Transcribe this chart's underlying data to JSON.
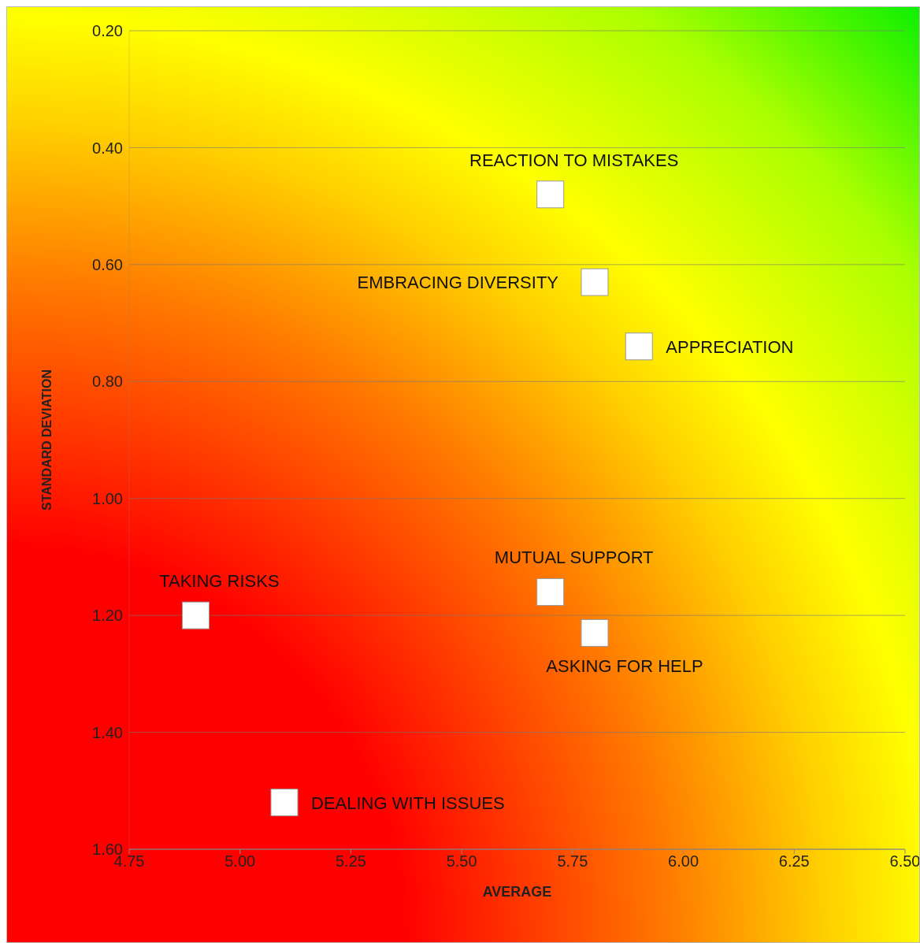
{
  "chart_data": {
    "type": "scatter",
    "xlabel": "AVERAGE",
    "ylabel": "STANDARD DEVIATION",
    "xlim": [
      4.75,
      6.5
    ],
    "ylim": [
      1.6,
      0.2
    ],
    "xticks": [
      4.75,
      {
        "value": 5,
        "label": "5.00"
      },
      5.25,
      {
        "value": 5.5,
        "label": "5.50"
      },
      5.75,
      {
        "value": 6,
        "label": "6.00"
      },
      6.25,
      {
        "value": 6.5,
        "label": "6.50"
      }
    ],
    "yticks": [
      {
        "value": 0.2,
        "label": "0.20"
      },
      {
        "value": 0.4,
        "label": "0.40"
      },
      {
        "value": 0.6,
        "label": "0.60"
      },
      {
        "value": 0.8,
        "label": "0.80"
      },
      {
        "value": 1,
        "label": "1.00"
      },
      {
        "value": 1.2,
        "label": "1.20"
      },
      {
        "value": 1.4,
        "label": "1.40"
      },
      {
        "value": 1.6,
        "label": "1.60"
      }
    ],
    "grid": "y",
    "marker": "square",
    "legend": false,
    "series": [
      {
        "name": "REACTION TO MISTAKES",
        "color": "#ffffff",
        "x": [
          5.7
        ],
        "values": [
          0.48
        ]
      },
      {
        "name": "EMBRACING DIVERSITY",
        "color": "#ffffff",
        "x": [
          5.8
        ],
        "values": [
          0.63
        ]
      },
      {
        "name": "APPRECIATION",
        "color": "#ffffff",
        "x": [
          5.9
        ],
        "values": [
          0.74
        ]
      },
      {
        "name": "MUTUAL SUPPORT",
        "color": "#ffffff",
        "x": [
          5.7
        ],
        "values": [
          1.16
        ]
      },
      {
        "name": "TAKING RISKS",
        "color": "#ffffff",
        "x": [
          4.9
        ],
        "values": [
          1.2
        ]
      },
      {
        "name": "ASKING FOR HELP",
        "color": "#ffffff",
        "x": [
          5.8
        ],
        "values": [
          1.23
        ]
      },
      {
        "name": "DEALING WITH ISSUES",
        "color": "#ffffff",
        "x": [
          5.1
        ],
        "values": [
          1.52
        ]
      }
    ]
  }
}
